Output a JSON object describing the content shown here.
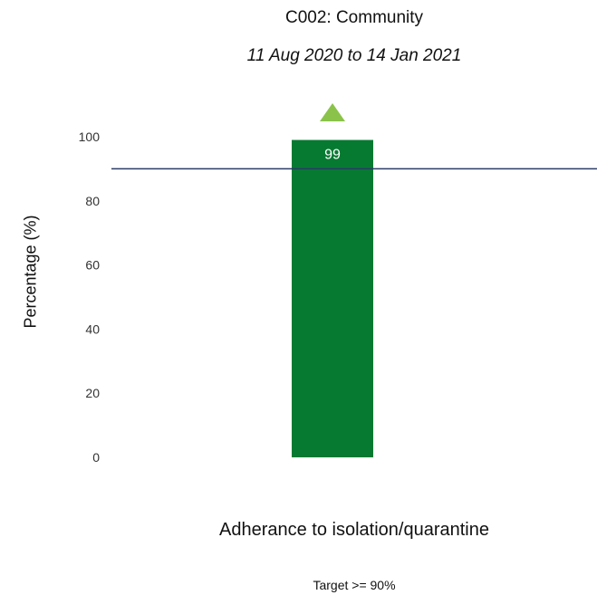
{
  "chart_data": {
    "type": "bar",
    "title": "C002: Community",
    "subtitle": "11 Aug 2020 to 14 Jan 2021",
    "xlabel": "Adherance to isolation/quarantine",
    "ylabel": "Percentage (%)",
    "categories": [
      "Adherance to isolation/quarantine"
    ],
    "values": [
      99
    ],
    "data_labels": [
      "99"
    ],
    "ylim": [
      0,
      100
    ],
    "yticks": [
      0,
      20,
      40,
      60,
      80,
      100
    ],
    "target_line": 90,
    "target_note": "Target >= 90%",
    "status_marker": "up-triangle",
    "grid": false,
    "legend": "none",
    "colors": {
      "bar": "#077a32",
      "target_line": "#2b3a67",
      "marker": "#8bc34a"
    }
  }
}
